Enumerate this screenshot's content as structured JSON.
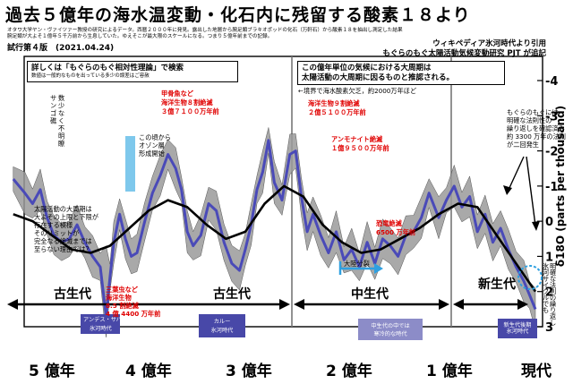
{
  "header": {
    "title": "過去５億年の海水温変動・化石内に残留する酸素１８より",
    "subtitle1": "オタワ大学ヤン・ヴァイツァー教授の研究によるデータ。西暦２０００年に発見。露出した地層から腕足類ブラキオポッドの化石（万軒石）から酸素１８を抽出し測定した結果",
    "subtitle2": "腕足類が大よそ１億年５千万前から生息していた。ゆえそこが最大限のスケールになる。つまり５億年前までの記録。",
    "version": "試行第４版　(2021.04.24)",
    "ref1": "ウィキペディア氷河時代より引用",
    "ref2": "もぐらのもぐ太陽活動気候変動研究 PJT が追記"
  },
  "boxes": {
    "detail": "詳しくは「もぐらのもぐ相対性理論」で検索",
    "detail_sub": "数値は一般的なものを出っている多少の誤差はご容赦",
    "cycle": "この億年単位の気候における大周期は\n太陽活動の大周期に因るものと推認される。"
  },
  "annotations": {
    "sanbuto": "サンゴ礁\n数少なく不明瞭",
    "ozone": "この頃から\nオゾン層\n形成開始",
    "kosogai": "甲骨魚など\n海洋生物８割絶滅\n３億７１００万年前",
    "perm": "海洋生物９割絶滅\n２億５１００万年前",
    "pangea": "←境界で海水酸素欠乏，約2000万年ほど",
    "ammonite": "アンモナイト絶滅\n１億９５００万年前",
    "dino": "恐竜絶滅\n6500 万年前",
    "drift": "大陸分裂",
    "trilobite": "三葉虫など\n海洋生物\n8.5 割絶滅\n4 億 4400 万年前",
    "left_note": "太陽活動の大周期は\n大よその上限と下限が\n存在する模様\nそのリミットが\n完全なる絶滅までは\n至らない理由では？",
    "right_note": "もぐらのもぐには\n明確な法則性の\n繰り返しを確認済み\n約 3300 万年の法則\nが二回発生",
    "ice_note": "氷河サイクルでも\n明確な法則の繰り返し",
    "ice_andes": "アンデス・サハラ",
    "ice_andes2": "氷河時代",
    "ice_karoo": "カルー\n氷河時代",
    "ice_meso": "中生代の中では\n寒冷的な時代",
    "ice_ceno": "新生代後期\n氷河時代"
  },
  "eras": {
    "paleozoic_left": "古生代",
    "paleozoic_right": "古生代",
    "mesozoic": "中生代",
    "cenozoic": "新生代"
  },
  "chart_data": {
    "type": "line",
    "title": "過去５億年の海水温変動・化石内に残留する酸素１８より",
    "xlabel": "",
    "ylabel": "δ18O (parts per thousand)",
    "x_ticks": [
      "5 億年",
      "4 億年",
      "3 億年",
      "2 億年",
      "1 億年",
      "現代"
    ],
    "y_ticks": [
      "-4",
      "-3",
      "-2",
      "-1",
      "0",
      "1",
      "2",
      "3"
    ],
    "xlim_Ma": [
      540,
      0
    ],
    "ylim": [
      -4,
      3
    ],
    "y_inverted": true,
    "series": [
      {
        "name": "",
        "color": "#4a4ab8",
        "x_Ma": [
          540,
          528,
          520,
          512,
          505,
          498,
          490,
          482,
          474,
          466,
          458,
          450,
          444,
          440,
          436,
          430,
          424,
          418,
          412,
          404,
          396,
          388,
          380,
          372,
          366,
          360,
          354,
          346,
          338,
          330,
          322,
          314,
          306,
          300,
          294,
          288,
          282,
          276,
          270,
          262,
          254,
          248,
          242,
          236,
          230,
          222,
          214,
          206,
          198,
          190,
          182,
          174,
          166,
          158,
          150,
          142,
          134,
          126,
          118,
          110,
          100,
          92,
          84,
          76,
          68,
          60,
          52,
          44,
          36,
          28,
          20,
          12,
          6,
          0
        ],
        "values": [
          -1.2,
          -0.8,
          -0.5,
          -0.9,
          -0.1,
          0.4,
          0.6,
          0.5,
          0.1,
          0.6,
          1.0,
          1.3,
          2.7,
          1.6,
          0.6,
          -0.2,
          0.5,
          1.0,
          0.9,
          0.0,
          -0.8,
          -1.3,
          -1.9,
          -1.5,
          -0.9,
          0.3,
          0.7,
          0.4,
          -0.5,
          -0.3,
          0.6,
          1.2,
          1.4,
          0.8,
          0.1,
          -0.9,
          -1.4,
          -2.3,
          -1.1,
          -0.6,
          -1.9,
          -2.0,
          -0.7,
          0.3,
          -0.2,
          0.4,
          0.9,
          0.3,
          1.1,
          0.8,
          1.3,
          0.6,
          1.2,
          0.5,
          0.7,
          1.0,
          0.4,
          0.3,
          -0.1,
          -0.8,
          -0.1,
          -0.6,
          -1.0,
          -0.4,
          -0.7,
          0.3,
          -0.2,
          0.6,
          0.2,
          0.8,
          1.3,
          1.7,
          2.1,
          2.5
        ]
      },
      {
        "name": "",
        "color": "#000000",
        "x_Ma": [
          540,
          520,
          500,
          480,
          460,
          440,
          420,
          400,
          380,
          360,
          340,
          320,
          300,
          280,
          260,
          240,
          220,
          200,
          180,
          160,
          140,
          120,
          100,
          80,
          60,
          40,
          20,
          0
        ],
        "values": [
          -0.2,
          0.0,
          0.4,
          0.8,
          0.9,
          0.7,
          0.2,
          -0.3,
          -0.6,
          -0.4,
          0.1,
          0.5,
          0.3,
          -0.5,
          -1.0,
          -0.7,
          0.1,
          0.6,
          0.9,
          0.8,
          0.5,
          0.2,
          -0.2,
          -0.5,
          -0.4,
          0.4,
          1.2,
          2.0
        ]
      }
    ]
  }
}
